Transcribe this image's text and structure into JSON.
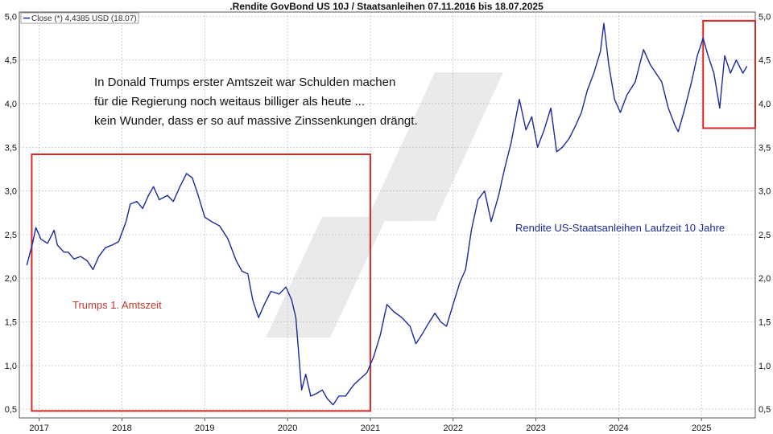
{
  "chart_data": {
    "type": "line",
    "title": ".Rendite GovBond US 10J / Staatsanleihen 07.11.2016 bis 18.07.2025",
    "legend": "Close (*) 4,4385 USD (18.07)",
    "ylim": [
      0.4,
      5.05
    ],
    "y_ticks": [
      {
        "value": 0.5,
        "label": "0,5"
      },
      {
        "value": 1.0,
        "label": "1,0"
      },
      {
        "value": 1.5,
        "label": "1,5"
      },
      {
        "value": 2.0,
        "label": "2,0"
      },
      {
        "value": 2.5,
        "label": "2,5"
      },
      {
        "value": 3.0,
        "label": "3,0"
      },
      {
        "value": 3.5,
        "label": "3,5"
      },
      {
        "value": 4.0,
        "label": "4,0"
      },
      {
        "value": 4.5,
        "label": "4,5"
      },
      {
        "value": 5.0,
        "label": "5,0"
      }
    ],
    "x_ticks": [
      {
        "value": 2017,
        "label": "2017"
      },
      {
        "value": 2018,
        "label": "2018"
      },
      {
        "value": 2019,
        "label": "2019"
      },
      {
        "value": 2020,
        "label": "2020"
      },
      {
        "value": 2021,
        "label": "2021"
      },
      {
        "value": 2022,
        "label": "2022"
      },
      {
        "value": 2023,
        "label": "2023"
      },
      {
        "value": 2024,
        "label": "2024"
      },
      {
        "value": 2025,
        "label": "2025"
      }
    ],
    "xlim": [
      2016.76,
      2025.65
    ],
    "series": [
      {
        "name": "Rendite US-Staatsanleihen Laufzeit 10 Jahre",
        "color": "#1a2a9c",
        "points": [
          [
            2016.85,
            2.15
          ],
          [
            2016.92,
            2.4
          ],
          [
            2016.96,
            2.58
          ],
          [
            2017.02,
            2.45
          ],
          [
            2017.1,
            2.4
          ],
          [
            2017.18,
            2.55
          ],
          [
            2017.22,
            2.38
          ],
          [
            2017.3,
            2.3
          ],
          [
            2017.35,
            2.3
          ],
          [
            2017.42,
            2.22
          ],
          [
            2017.5,
            2.25
          ],
          [
            2017.58,
            2.2
          ],
          [
            2017.65,
            2.1
          ],
          [
            2017.72,
            2.25
          ],
          [
            2017.8,
            2.35
          ],
          [
            2017.88,
            2.38
          ],
          [
            2017.96,
            2.42
          ],
          [
            2018.05,
            2.65
          ],
          [
            2018.1,
            2.85
          ],
          [
            2018.18,
            2.88
          ],
          [
            2018.25,
            2.8
          ],
          [
            2018.32,
            2.95
          ],
          [
            2018.38,
            3.05
          ],
          [
            2018.45,
            2.9
          ],
          [
            2018.55,
            2.95
          ],
          [
            2018.62,
            2.88
          ],
          [
            2018.7,
            3.05
          ],
          [
            2018.78,
            3.2
          ],
          [
            2018.85,
            3.15
          ],
          [
            2018.92,
            2.95
          ],
          [
            2019.0,
            2.7
          ],
          [
            2019.08,
            2.65
          ],
          [
            2019.18,
            2.6
          ],
          [
            2019.28,
            2.45
          ],
          [
            2019.38,
            2.2
          ],
          [
            2019.45,
            2.08
          ],
          [
            2019.52,
            2.05
          ],
          [
            2019.58,
            1.75
          ],
          [
            2019.65,
            1.55
          ],
          [
            2019.72,
            1.7
          ],
          [
            2019.8,
            1.85
          ],
          [
            2019.9,
            1.82
          ],
          [
            2019.98,
            1.9
          ],
          [
            2020.05,
            1.75
          ],
          [
            2020.1,
            1.55
          ],
          [
            2020.17,
            0.72
          ],
          [
            2020.22,
            0.9
          ],
          [
            2020.28,
            0.65
          ],
          [
            2020.35,
            0.68
          ],
          [
            2020.42,
            0.72
          ],
          [
            2020.48,
            0.62
          ],
          [
            2020.55,
            0.55
          ],
          [
            2020.62,
            0.65
          ],
          [
            2020.7,
            0.65
          ],
          [
            2020.8,
            0.78
          ],
          [
            2020.88,
            0.85
          ],
          [
            2020.96,
            0.92
          ],
          [
            2021.04,
            1.1
          ],
          [
            2021.12,
            1.35
          ],
          [
            2021.2,
            1.7
          ],
          [
            2021.28,
            1.62
          ],
          [
            2021.38,
            1.55
          ],
          [
            2021.48,
            1.45
          ],
          [
            2021.55,
            1.25
          ],
          [
            2021.62,
            1.35
          ],
          [
            2021.7,
            1.48
          ],
          [
            2021.78,
            1.6
          ],
          [
            2021.85,
            1.5
          ],
          [
            2021.92,
            1.45
          ],
          [
            2022.0,
            1.7
          ],
          [
            2022.08,
            1.95
          ],
          [
            2022.15,
            2.1
          ],
          [
            2022.22,
            2.55
          ],
          [
            2022.3,
            2.9
          ],
          [
            2022.38,
            3.0
          ],
          [
            2022.46,
            2.65
          ],
          [
            2022.55,
            2.95
          ],
          [
            2022.62,
            3.25
          ],
          [
            2022.7,
            3.55
          ],
          [
            2022.8,
            4.05
          ],
          [
            2022.88,
            3.7
          ],
          [
            2022.95,
            3.85
          ],
          [
            2023.02,
            3.5
          ],
          [
            2023.1,
            3.7
          ],
          [
            2023.18,
            3.95
          ],
          [
            2023.25,
            3.45
          ],
          [
            2023.32,
            3.5
          ],
          [
            2023.4,
            3.6
          ],
          [
            2023.48,
            3.75
          ],
          [
            2023.55,
            3.9
          ],
          [
            2023.62,
            4.15
          ],
          [
            2023.7,
            4.35
          ],
          [
            2023.78,
            4.6
          ],
          [
            2023.82,
            4.92
          ],
          [
            2023.88,
            4.45
          ],
          [
            2023.95,
            4.05
          ],
          [
            2024.02,
            3.9
          ],
          [
            2024.1,
            4.1
          ],
          [
            2024.2,
            4.25
          ],
          [
            2024.3,
            4.62
          ],
          [
            2024.38,
            4.45
          ],
          [
            2024.45,
            4.35
          ],
          [
            2024.52,
            4.25
          ],
          [
            2024.6,
            3.95
          ],
          [
            2024.68,
            3.75
          ],
          [
            2024.72,
            3.68
          ],
          [
            2024.8,
            3.95
          ],
          [
            2024.88,
            4.25
          ],
          [
            2024.95,
            4.55
          ],
          [
            2025.02,
            4.75
          ],
          [
            2025.08,
            4.55
          ],
          [
            2025.15,
            4.35
          ],
          [
            2025.22,
            3.95
          ],
          [
            2025.28,
            4.55
          ],
          [
            2025.35,
            4.35
          ],
          [
            2025.42,
            4.5
          ],
          [
            2025.5,
            4.35
          ],
          [
            2025.55,
            4.43
          ]
        ]
      }
    ],
    "annotations": {
      "note_lines": [
        "In Donald Trumps erster Amtszeit war Schulden machen",
        "für die Regierung noch weitaus billiger als heute ...",
        "kein Wunder, dass er so auf massive Zinssenkungen drängt."
      ],
      "box1_label": "Trumps 1. Amtszeit",
      "series_label": "Rendite US-Staatsanleihen Laufzeit 10 Jahre",
      "box_color": "#d42a2a",
      "boxes": [
        {
          "x0": 2016.91,
          "x1": 2021.0,
          "y0": 0.48,
          "y1": 3.42
        },
        {
          "x0": 2025.02,
          "x1": 2025.65,
          "y0": 3.72,
          "y1": 4.95
        }
      ]
    },
    "grid": true
  }
}
